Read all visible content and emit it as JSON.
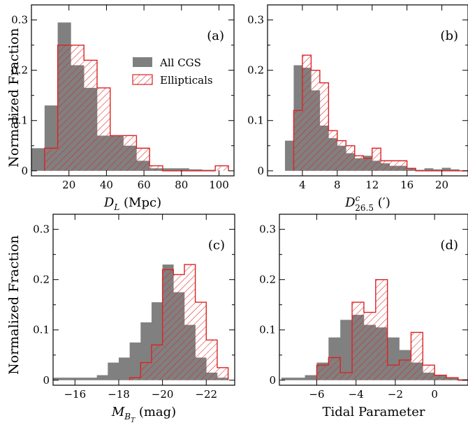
{
  "figure": {
    "ylabel": "Normalized Fraction"
  },
  "legend": {
    "all_label": "All CGS",
    "ell_label": "Ellipticals"
  },
  "colors": {
    "all_fill": "#808080",
    "ell_edge": "#dd2222",
    "ell_hatch": "#dd2222"
  },
  "chart_data": [
    {
      "type": "bar",
      "panel": "(a)",
      "xlabel_main": "D",
      "xlabel_sub": "L",
      "xlabel_rest": " (Mpc)",
      "xlim": [
        0,
        108
      ],
      "ylim": [
        -0.01,
        0.33
      ],
      "xticks": [
        20,
        40,
        60,
        80,
        100
      ],
      "xtick_labels": [
        "20",
        "40",
        "60",
        "80",
        "100"
      ],
      "yticks": [
        0,
        0.1,
        0.2,
        0.3
      ],
      "ytick_labels": [
        "0",
        "0.1",
        "0.2",
        "0.3"
      ],
      "bin_edges": [
        0,
        7,
        14,
        21,
        28,
        35,
        42,
        49,
        56,
        63,
        70,
        77,
        84,
        91,
        98,
        105
      ],
      "series": [
        {
          "name": "All CGS",
          "values": [
            0.045,
            0.13,
            0.295,
            0.21,
            0.165,
            0.07,
            0.07,
            0.05,
            0.02,
            0.005,
            0.005,
            0.005,
            0.003,
            0.002,
            0.0
          ]
        },
        {
          "name": "Ellipticals",
          "values": [
            0.0,
            0.045,
            0.25,
            0.25,
            0.22,
            0.165,
            0.07,
            0.07,
            0.045,
            0.01,
            0.0,
            0.0,
            0.0,
            0.0,
            0.01
          ]
        }
      ],
      "legend_placement": "upper-right"
    },
    {
      "type": "bar",
      "panel": "(b)",
      "xlabel_main": "D",
      "xlabel_sub": "26.5",
      "xlabel_sup": "c",
      "xlabel_rest": " (′)",
      "xlim": [
        0,
        23
      ],
      "ylim": [
        -0.01,
        0.33
      ],
      "xticks": [
        4,
        8,
        12,
        16,
        20
      ],
      "xtick_labels": [
        "4",
        "8",
        "12",
        "16",
        "20"
      ],
      "yticks": [
        0,
        0.1,
        0.2,
        0.3
      ],
      "ytick_labels": [
        "0",
        "0.1",
        "0.2",
        "0.3"
      ],
      "bin_edges": [
        2,
        3,
        4,
        5,
        6,
        7,
        8,
        9,
        10,
        11,
        12,
        13,
        14,
        15,
        16,
        17,
        18,
        19,
        20,
        21,
        22,
        23
      ],
      "series": [
        {
          "name": "All CGS",
          "values": [
            0.06,
            0.21,
            0.205,
            0.16,
            0.09,
            0.065,
            0.05,
            0.035,
            0.025,
            0.03,
            0.02,
            0.015,
            0.01,
            0.01,
            0.005,
            0.002,
            0.005,
            0.003,
            0.006,
            0.003,
            0.0
          ]
        },
        {
          "name": "Ellipticals",
          "values": [
            0.0,
            0.12,
            0.23,
            0.2,
            0.175,
            0.08,
            0.06,
            0.05,
            0.03,
            0.025,
            0.045,
            0.02,
            0.02,
            0.02,
            0.005,
            0.0,
            0.0,
            0.0,
            0.0,
            0.0,
            0.0
          ]
        }
      ],
      "legend_placement": "none"
    },
    {
      "type": "bar",
      "panel": "(c)",
      "xlabel_main": "M",
      "xlabel_sub": "B",
      "xlabel_subsub": "T",
      "xlabel_rest": " (mag)",
      "xlim": [
        -15,
        -23.3
      ],
      "ylim": [
        -0.01,
        0.33
      ],
      "xticks": [
        -16,
        -18,
        -20,
        -22
      ],
      "xtick_labels": [
        "−16",
        "−18",
        "−20",
        "−22"
      ],
      "yticks": [
        0,
        0.1,
        0.2,
        0.3
      ],
      "ytick_labels": [
        "0",
        "0.1",
        "0.2",
        "0.3"
      ],
      "bin_edges": [
        -15,
        -15.5,
        -16,
        -16.5,
        -17,
        -17.5,
        -18,
        -18.5,
        -19,
        -19.5,
        -20,
        -20.5,
        -21,
        -21.5,
        -22,
        -22.5,
        -23
      ],
      "series": [
        {
          "name": "All CGS",
          "values": [
            0.005,
            0.005,
            0.005,
            0.005,
            0.01,
            0.035,
            0.045,
            0.075,
            0.115,
            0.155,
            0.23,
            0.175,
            0.11,
            0.045,
            0.015,
            0.005
          ]
        },
        {
          "name": "Ellipticals",
          "values": [
            0.0,
            0.0,
            0.0,
            0.0,
            0.0,
            0.0,
            0.0,
            0.005,
            0.035,
            0.07,
            0.22,
            0.21,
            0.23,
            0.155,
            0.08,
            0.025
          ]
        }
      ],
      "legend_placement": "none"
    },
    {
      "type": "bar",
      "panel": "(d)",
      "xlabel_main": "Tidal Parameter",
      "xlim": [
        -7.9,
        1.7
      ],
      "ylim": [
        -0.01,
        0.33
      ],
      "xticks": [
        -6,
        -4,
        -2,
        0
      ],
      "xtick_labels": [
        "−6",
        "−4",
        "−2",
        "0"
      ],
      "yticks": [
        0,
        0.1,
        0.2,
        0.3
      ],
      "ytick_labels": [
        "0",
        "0.1",
        "0.2",
        "0.3"
      ],
      "bin_edges": [
        -7.8,
        -7.2,
        -6.6,
        -6.0,
        -5.4,
        -4.8,
        -4.2,
        -3.6,
        -3.0,
        -2.4,
        -1.8,
        -1.2,
        -0.6,
        0.0,
        0.6,
        1.2,
        1.8
      ],
      "series": [
        {
          "name": "All CGS",
          "values": [
            0.005,
            0.005,
            0.01,
            0.035,
            0.085,
            0.12,
            0.13,
            0.11,
            0.105,
            0.085,
            0.06,
            0.035,
            0.015,
            0.01,
            0.005,
            0.002
          ]
        },
        {
          "name": "Ellipticals",
          "values": [
            0.0,
            0.0,
            0.0,
            0.03,
            0.045,
            0.015,
            0.155,
            0.135,
            0.2,
            0.03,
            0.04,
            0.095,
            0.03,
            0.01,
            0.005,
            0.0
          ]
        }
      ],
      "legend_placement": "none"
    }
  ]
}
